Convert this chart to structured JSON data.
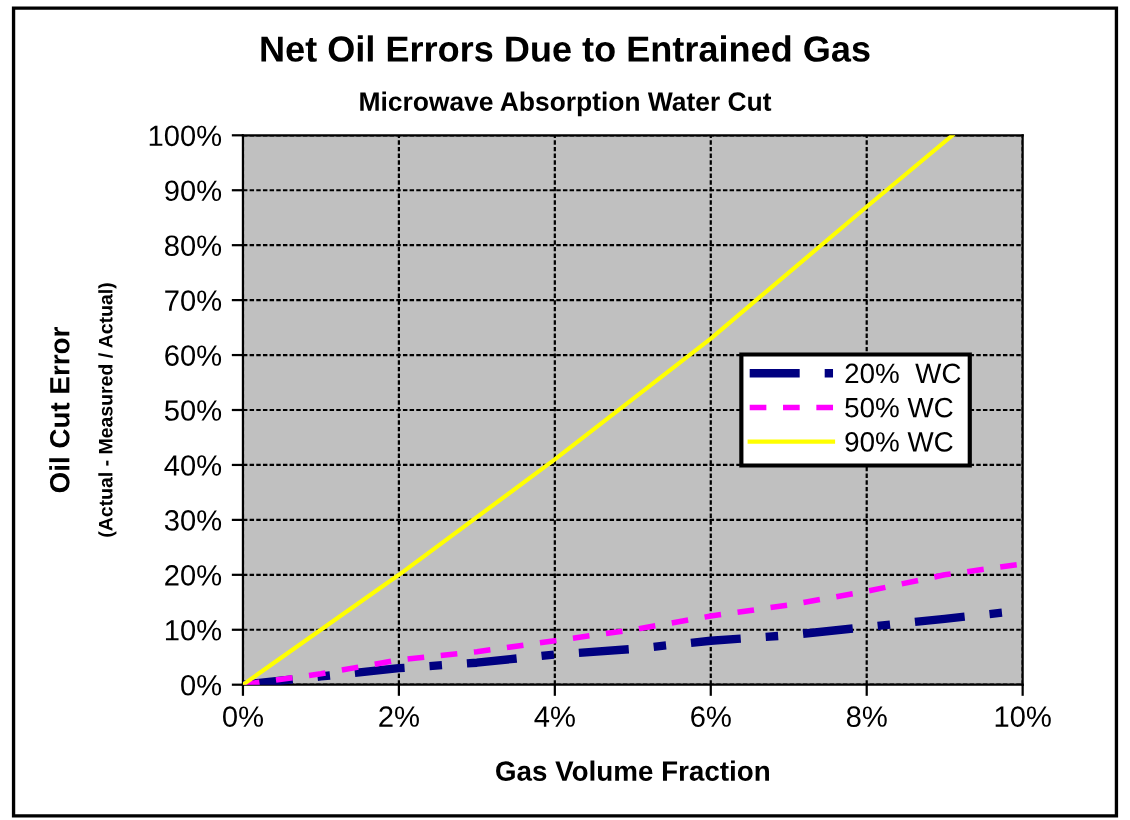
{
  "chart_data": {
    "type": "line",
    "title": "Net Oil Errors Due to Entrained Gas",
    "subtitle": "Microwave Absorption Water Cut",
    "xlabel": "Gas Volume Fraction",
    "ylabel": "Oil Cut Error",
    "annotations": [
      "(Actual - Measured / Actual)"
    ],
    "xlim": [
      0,
      10
    ],
    "xticks": [
      {
        "value": 0,
        "label": "0%"
      },
      {
        "value": 2,
        "label": "2%"
      },
      {
        "value": 4,
        "label": "4%"
      },
      {
        "value": 6,
        "label": "6%"
      },
      {
        "value": 8,
        "label": "8%"
      },
      {
        "value": 10,
        "label": "10%"
      }
    ],
    "ylim": [
      0,
      100
    ],
    "yticks": [
      {
        "value": 0,
        "label": "0%"
      },
      {
        "value": 10,
        "label": "10%"
      },
      {
        "value": 20,
        "label": "20%"
      },
      {
        "value": 30,
        "label": "30%"
      },
      {
        "value": 40,
        "label": "40%"
      },
      {
        "value": 50,
        "label": "50%"
      },
      {
        "value": 60,
        "label": "60%"
      },
      {
        "value": 70,
        "label": "70%"
      },
      {
        "value": 80,
        "label": "80%"
      },
      {
        "value": 90,
        "label": "90%"
      },
      {
        "value": 100,
        "label": "100%"
      }
    ],
    "grid": true,
    "legend": "right",
    "marker": "none",
    "series": [
      {
        "name": "20%  WC",
        "color": "#000080",
        "line_style": "dashed",
        "x": [
          0,
          1,
          2,
          3,
          4,
          5,
          6,
          7,
          8,
          9,
          10
        ],
        "values": [
          0,
          1.5,
          3,
          4,
          5.5,
          6.5,
          8,
          9,
          10.5,
          12,
          13.5
        ]
      },
      {
        "name": "50% WC",
        "color": "#ff00ff",
        "line_style": "dotted",
        "x": [
          0,
          1,
          2,
          3,
          4,
          5,
          6,
          7,
          8,
          9,
          10
        ],
        "values": [
          0,
          2,
          4.5,
          6,
          8,
          10,
          12.5,
          14.5,
          17,
          20,
          22
        ]
      },
      {
        "name": "90% WC",
        "color": "#ffff00",
        "line_style": "solid",
        "x": [
          0,
          2,
          4,
          6,
          8,
          9.1
        ],
        "values": [
          0,
          20,
          41,
          63,
          87,
          100
        ]
      }
    ]
  }
}
